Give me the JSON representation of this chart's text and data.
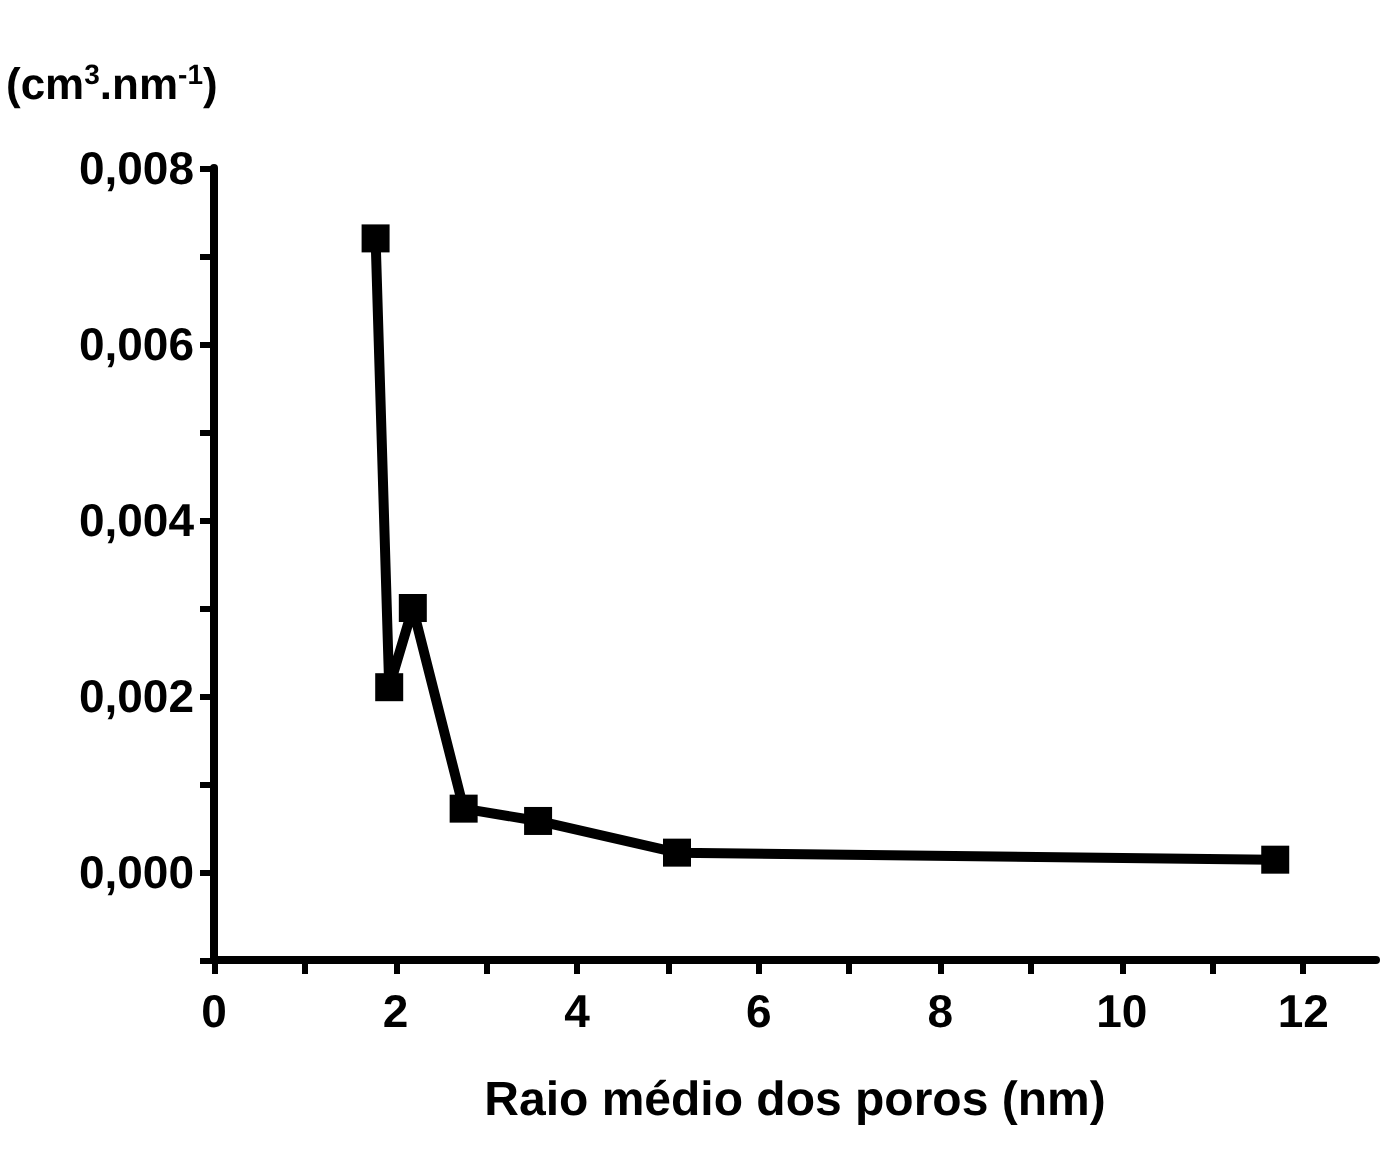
{
  "chart_data": {
    "type": "line",
    "xlabel": "Raio médio dos poros (nm)",
    "ylabel": "(cm$^{3}$.nm$^{-1}$)",
    "x": [
      1.78,
      1.93,
      2.19,
      2.75,
      3.57,
      5.1,
      11.69
    ],
    "series": [
      {
        "color": "#000000",
        "values": [
          0.0072,
          0.0021,
          0.003,
          0.00072,
          0.00058,
          0.00022,
          0.00014
        ]
      }
    ],
    "xlim": [
      0,
      12.8
    ],
    "xticks": [
      0,
      {
        "value": 1,
        "label": null
      },
      2,
      {
        "value": 3,
        "label": null
      },
      4,
      {
        "value": 5,
        "label": null
      },
      6,
      {
        "value": 7,
        "label": null
      },
      8,
      {
        "value": 9,
        "label": null
      },
      10,
      {
        "value": 11,
        "label": null
      },
      12
    ],
    "ylim": [
      -0.001,
      0.008
    ],
    "yticks": [
      {
        "value": -0.001,
        "label": null
      },
      {
        "value": 0,
        "label": "0,000"
      },
      {
        "value": 0.001,
        "label": null
      },
      {
        "value": 0.002,
        "label": "0,002"
      },
      {
        "value": 0.003,
        "label": null
      },
      {
        "value": 0.004,
        "label": "0,004"
      },
      {
        "value": 0.005,
        "label": null
      },
      {
        "value": 0.006,
        "label": "0,006"
      },
      {
        "value": 0.007,
        "label": null
      },
      {
        "value": 0.008,
        "label": "0,008"
      }
    ],
    "grid": false,
    "marker": "square",
    "line_style": "solid"
  }
}
